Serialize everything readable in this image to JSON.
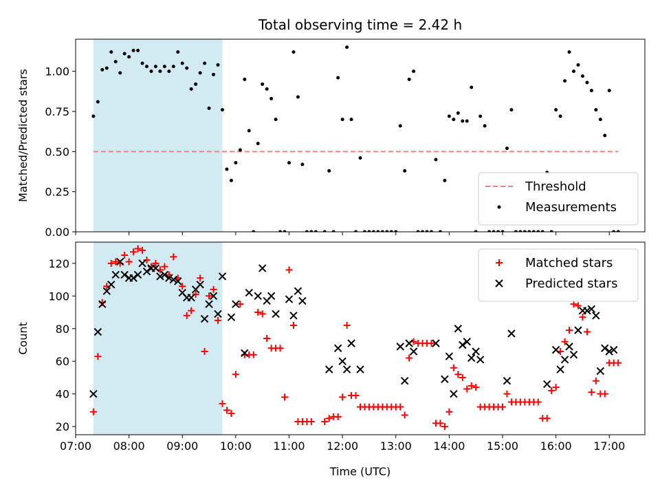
{
  "chart_data": [
    {
      "type": "scatter",
      "title": "Total observing time = 2.42 h",
      "xlabel": "",
      "ylabel": "Matched/Predicted stars",
      "xlim": [
        "07:00",
        "17:40"
      ],
      "ylim": [
        0.0,
        1.2
      ],
      "x_ticks": [
        "07:00",
        "08:00",
        "09:00",
        "10:00",
        "11:00",
        "12:00",
        "13:00",
        "14:00",
        "15:00",
        "16:00",
        "17:00"
      ],
      "y_ticks": [
        "0.00",
        "0.25",
        "0.50",
        "0.75",
        "1.00"
      ],
      "y_tick_values": [
        0,
        0.25,
        0.5,
        0.75,
        1.0
      ],
      "shaded_interval": {
        "start": "07:20",
        "end": "09:45",
        "color": "#add8e6"
      },
      "threshold": {
        "name": "Threshold",
        "value": 0.5,
        "start": "07:20",
        "end": "17:10",
        "color": "#f08080",
        "style": "dashed"
      },
      "legend": {
        "position": "bottom-right",
        "items": [
          "Threshold",
          "Measurements"
        ]
      },
      "series": [
        {
          "name": "Measurements",
          "color": "#000000",
          "marker": "dot",
          "x": [
            "07:20",
            "07:25",
            "07:30",
            "07:35",
            "07:40",
            "07:45",
            "07:50",
            "07:55",
            "08:00",
            "08:05",
            "08:10",
            "08:15",
            "08:20",
            "08:25",
            "08:30",
            "08:35",
            "08:40",
            "08:45",
            "08:50",
            "08:55",
            "09:00",
            "09:05",
            "09:10",
            "09:15",
            "09:20",
            "09:25",
            "09:30",
            "09:35",
            "09:40",
            "09:45",
            "09:50",
            "09:55",
            "10:00",
            "10:05",
            "10:10",
            "10:15",
            "10:20",
            "10:25",
            "10:30",
            "10:35",
            "10:40",
            "10:45",
            "10:50",
            "10:55",
            "11:00",
            "11:05",
            "11:10",
            "11:15",
            "11:20",
            "11:25",
            "11:30",
            "11:40",
            "11:45",
            "11:50",
            "11:55",
            "12:00",
            "12:05",
            "12:10",
            "12:15",
            "12:20",
            "12:25",
            "12:30",
            "12:35",
            "12:40",
            "12:45",
            "12:50",
            "12:55",
            "13:00",
            "13:05",
            "13:10",
            "13:15",
            "13:20",
            "13:25",
            "13:30",
            "13:35",
            "13:40",
            "13:45",
            "13:50",
            "13:55",
            "14:00",
            "14:05",
            "14:10",
            "14:15",
            "14:20",
            "14:25",
            "14:30",
            "14:35",
            "14:40",
            "14:45",
            "14:50",
            "14:55",
            "15:00",
            "15:05",
            "15:10",
            "15:15",
            "15:20",
            "15:25",
            "15:30",
            "15:35",
            "15:40",
            "15:45",
            "15:50",
            "15:55",
            "16:00",
            "16:05",
            "16:10",
            "16:15",
            "16:20",
            "16:25",
            "16:30",
            "16:35",
            "16:40",
            "16:45",
            "16:50",
            "16:55",
            "17:00",
            "17:05",
            "17:10"
          ],
          "y": [
            0.72,
            0.81,
            1.01,
            1.02,
            1.12,
            1.06,
            0.99,
            1.11,
            1.09,
            1.13,
            1.13,
            1.05,
            1.03,
            1.0,
            1.03,
            1.0,
            1.03,
            1.0,
            1.03,
            1.12,
            1.05,
            1.02,
            0.89,
            0.92,
            0.99,
            1.05,
            0.77,
            0.98,
            1.04,
            0.76,
            0.39,
            0.32,
            0.43,
            0.51,
            0.95,
            0.63,
            0.0,
            0.55,
            0.92,
            0.89,
            0.83,
            0.7,
            0.0,
            0.0,
            0.43,
            1.12,
            0.84,
            0.42,
            0.0,
            0.0,
            0.0,
            0.0,
            0.38,
            0.0,
            0.96,
            0.7,
            1.15,
            0.7,
            0.0,
            0.46,
            0.0,
            0.0,
            0.0,
            0.0,
            0.0,
            0.0,
            0.0,
            0.0,
            0.66,
            0.38,
            0.95,
            1.0,
            0.0,
            0.0,
            0.0,
            0.0,
            0.45,
            0.0,
            0.32,
            0.72,
            0.7,
            0.74,
            0.69,
            0.69,
            0.9,
            0.0,
            0.72,
            0.66,
            0.0,
            0.0,
            0.0,
            0.0,
            0.52,
            0.76,
            0.0,
            0.0,
            0.0,
            0.0,
            0.0,
            0.0,
            0.0,
            0.37,
            0.0,
            0.76,
            0.72,
            0.94,
            1.12,
            1.0,
            1.04,
            0.97,
            0.93,
            0.88,
            0.76,
            0.7,
            0.6,
            0.88,
            0.0,
            0.0
          ]
        }
      ]
    },
    {
      "type": "scatter",
      "title": "",
      "xlabel": "Time (UTC)",
      "ylabel": "Count",
      "xlim": [
        "07:00",
        "17:40"
      ],
      "ylim": [
        15,
        133
      ],
      "x_ticks": [
        "07:00",
        "08:00",
        "09:00",
        "10:00",
        "11:00",
        "12:00",
        "13:00",
        "14:00",
        "15:00",
        "16:00",
        "17:00"
      ],
      "y_ticks": [
        "20",
        "40",
        "60",
        "80",
        "100",
        "120"
      ],
      "y_tick_values": [
        20,
        40,
        60,
        80,
        100,
        120
      ],
      "shaded_interval": {
        "start": "07:20",
        "end": "09:45",
        "color": "#add8e6"
      },
      "legend": {
        "position": "top-right",
        "items": [
          "Matched stars",
          "Predicted stars"
        ]
      },
      "series": [
        {
          "name": "Matched stars",
          "color": "#ff0000",
          "marker": "plus",
          "x": [
            "07:20",
            "07:25",
            "07:30",
            "07:35",
            "07:40",
            "07:45",
            "07:50",
            "07:55",
            "08:00",
            "08:05",
            "08:10",
            "08:15",
            "08:20",
            "08:25",
            "08:30",
            "08:35",
            "08:40",
            "08:45",
            "08:50",
            "08:55",
            "09:00",
            "09:05",
            "09:10",
            "09:15",
            "09:20",
            "09:25",
            "09:30",
            "09:35",
            "09:40",
            "09:45",
            "09:50",
            "09:55",
            "10:00",
            "10:05",
            "10:10",
            "10:15",
            "10:20",
            "10:25",
            "10:30",
            "10:35",
            "10:40",
            "10:45",
            "10:50",
            "10:55",
            "11:00",
            "11:05",
            "11:10",
            "11:15",
            "11:20",
            "11:25",
            "11:40",
            "11:45",
            "11:50",
            "11:55",
            "12:00",
            "12:05",
            "12:10",
            "12:15",
            "12:20",
            "12:25",
            "12:30",
            "12:35",
            "12:40",
            "12:45",
            "12:50",
            "12:55",
            "13:00",
            "13:05",
            "13:10",
            "13:15",
            "13:20",
            "13:25",
            "13:30",
            "13:35",
            "13:40",
            "13:45",
            "13:50",
            "13:55",
            "14:00",
            "14:05",
            "14:10",
            "14:15",
            "14:20",
            "14:25",
            "14:30",
            "14:35",
            "14:40",
            "14:45",
            "14:50",
            "14:55",
            "15:00",
            "15:05",
            "15:10",
            "15:15",
            "15:20",
            "15:25",
            "15:30",
            "15:35",
            "15:40",
            "15:45",
            "15:50",
            "15:55",
            "16:00",
            "16:05",
            "16:10",
            "16:15",
            "16:20",
            "16:25",
            "16:30",
            "16:35",
            "16:40",
            "16:45",
            "16:50",
            "16:55",
            "17:00",
            "17:05",
            "17:10"
          ],
          "y": [
            29,
            63,
            96,
            106,
            120,
            121,
            120,
            125,
            121,
            127,
            129,
            128,
            122,
            118,
            120,
            116,
            118,
            113,
            124,
            111,
            106,
            88,
            91,
            101,
            111,
            66,
            100,
            104,
            85,
            34,
            30,
            28,
            52,
            95,
            64,
            64,
            64,
            90,
            89,
            74,
            68,
            68,
            68,
            38,
            116,
            82,
            23,
            23,
            23,
            23,
            23,
            25,
            26,
            26,
            38,
            82,
            39,
            39,
            32,
            32,
            32,
            32,
            32,
            32,
            32,
            32,
            32,
            32,
            27,
            62,
            72,
            71,
            71,
            71,
            71,
            22,
            22,
            20,
            29,
            56,
            52,
            50,
            43,
            45,
            44,
            32,
            32,
            32,
            32,
            32,
            32,
            40,
            35,
            35,
            35,
            35,
            35,
            35,
            35,
            25,
            25,
            42,
            44,
            66,
            72,
            79,
            95,
            94,
            87,
            78,
            41,
            48,
            40,
            40,
            59,
            59,
            59
          ],
          "note_unused": ""
        },
        {
          "name": "Predicted stars",
          "color": "#000000",
          "marker": "x",
          "x": [
            "07:20",
            "07:25",
            "07:30",
            "07:35",
            "07:40",
            "07:45",
            "07:50",
            "07:55",
            "08:00",
            "08:05",
            "08:10",
            "08:15",
            "08:20",
            "08:25",
            "08:30",
            "08:35",
            "08:40",
            "08:45",
            "08:50",
            "08:55",
            "09:00",
            "09:05",
            "09:10",
            "09:15",
            "09:20",
            "09:25",
            "09:30",
            "09:35",
            "09:40",
            "09:45",
            "09:55",
            "10:00",
            "10:10",
            "10:15",
            "10:25",
            "10:30",
            "10:35",
            "10:40",
            "10:45",
            "11:00",
            "11:05",
            "11:10",
            "11:15",
            "11:45",
            "11:55",
            "12:00",
            "12:05",
            "12:10",
            "12:20",
            "13:05",
            "13:10",
            "13:15",
            "13:20",
            "13:45",
            "13:55",
            "14:00",
            "14:05",
            "14:10",
            "14:15",
            "14:20",
            "14:25",
            "14:30",
            "14:35",
            "15:05",
            "15:10",
            "15:50",
            "16:00",
            "16:05",
            "16:10",
            "16:15",
            "16:20",
            "16:25",
            "16:30",
            "16:35",
            "16:40",
            "16:45",
            "16:50",
            "16:55",
            "17:00",
            "17:05"
          ],
          "y": [
            40,
            78,
            95,
            103,
            107,
            113,
            121,
            113,
            111,
            111,
            113,
            120,
            115,
            117,
            117,
            112,
            113,
            111,
            110,
            109,
            102,
            99,
            99,
            104,
            107,
            86,
            95,
            100,
            89,
            112,
            87,
            95,
            65,
            102,
            100,
            117,
            97,
            100,
            89,
            98,
            88,
            103,
            97,
            55,
            68,
            60,
            55,
            71,
            55,
            69,
            48,
            71,
            66,
            71,
            49,
            63,
            40,
            80,
            70,
            72,
            62,
            66,
            61,
            48,
            77,
            46,
            67,
            55,
            61,
            69,
            64,
            79,
            91,
            91,
            92,
            88,
            54,
            68,
            66,
            67
          ],
          "note_unused": ""
        }
      ]
    }
  ]
}
